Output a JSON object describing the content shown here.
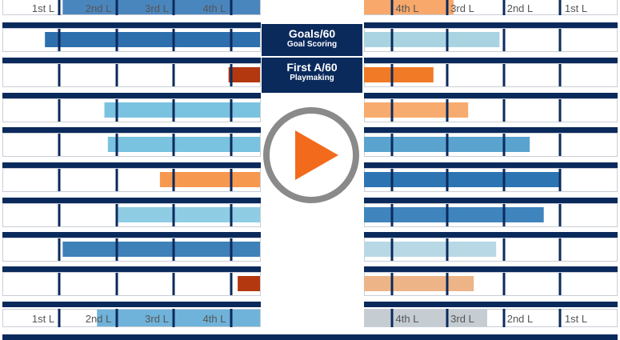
{
  "colors": {
    "navy": "#0b2a5c",
    "border": "#c9ced6",
    "play_ring": "#8a8a8a",
    "play_fill": "#ffffff",
    "play_triangle": "#f26b1d"
  },
  "center_panel": {
    "goals_title": "Goals/60",
    "goals_subtitle": "Goal Scoring",
    "assists_title": "First A/60",
    "assists_subtitle": "Playmaking"
  },
  "chart_data": {
    "type": "bar",
    "tick_labels": [
      "1st L",
      "2nd L",
      "3rd L",
      "4th L"
    ],
    "scale_note": "bar length in units of line thresholds (0-4); left panel grows leftward, right panel grows rightward",
    "left_panel": {
      "header_highlight": {
        "value": 3.45,
        "color": "#4a86be"
      },
      "footer_highlight": {
        "value": 2.85,
        "color": "#6fb3da"
      },
      "rows": [
        {
          "value": 3.76,
          "color": "#2e6fae"
        },
        {
          "value": 0.55,
          "color": "#b3380f"
        },
        {
          "value": 2.72,
          "color": "#79c2e0"
        },
        {
          "value": 2.66,
          "color": "#79c2e0"
        },
        {
          "value": 1.75,
          "color": "#f7984f"
        },
        {
          "value": 2.48,
          "color": "#8fcde4"
        },
        {
          "value": 3.45,
          "color": "#3e80b8"
        },
        {
          "value": 0.39,
          "color": "#b3380f"
        }
      ]
    },
    "right_panel": {
      "header_highlight": {
        "value": 1.6,
        "color": "#f7a86a"
      },
      "footer_highlight": {
        "value": 2.2,
        "color": "#c5cdd3"
      },
      "rows": [
        {
          "value": 2.42,
          "color": "#a9d3e0"
        },
        {
          "value": 1.24,
          "color": "#f07a25"
        },
        {
          "value": 1.86,
          "color": "#f7ab6e"
        },
        {
          "value": 2.96,
          "color": "#5ba3cf"
        },
        {
          "value": 3.51,
          "color": "#2d74b2"
        },
        {
          "value": 3.21,
          "color": "#3f84bd"
        },
        {
          "value": 2.36,
          "color": "#b7d8e4"
        },
        {
          "value": 1.96,
          "color": "#edb587"
        }
      ]
    }
  }
}
